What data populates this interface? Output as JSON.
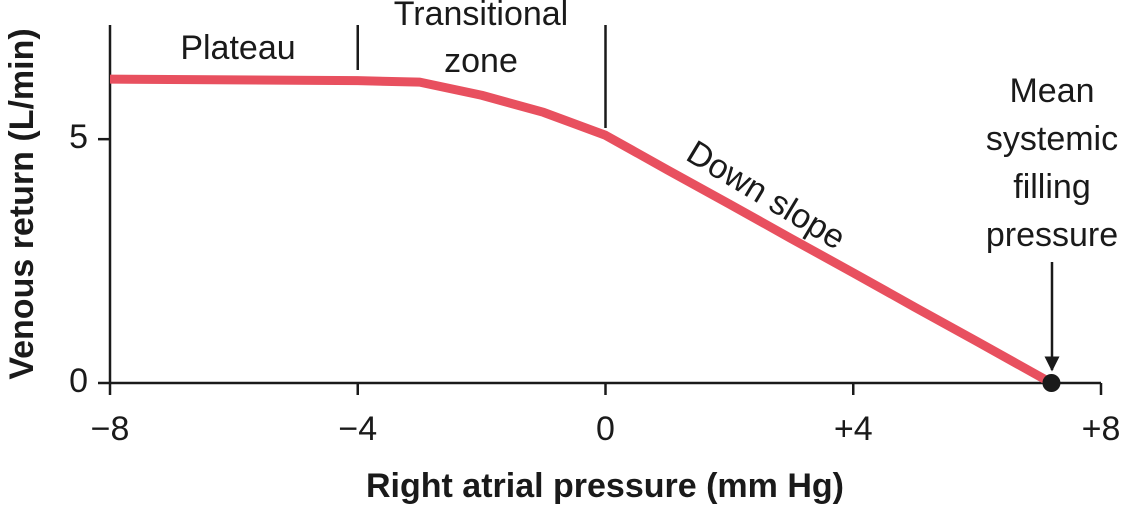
{
  "chart_data": {
    "type": "line",
    "x_label": "Right atrial pressure (mm Hg)",
    "y_label": "Venous return (L/min)",
    "x": [
      -8,
      -4,
      -3,
      -2,
      -1,
      0,
      1,
      2,
      3,
      4,
      5,
      6,
      7.2
    ],
    "series": [
      {
        "color": "#e8505f",
        "values": [
          6.23,
          6.2,
          6.17,
          5.9,
          5.55,
          5.08,
          4.37,
          3.67,
          2.96,
          2.26,
          1.55,
          0.85,
          0
        ]
      }
    ],
    "xlim": [
      -8,
      8
    ],
    "xticks": [
      {
        "value": -8,
        "label": "−8"
      },
      {
        "value": -4,
        "label": "−4"
      },
      0,
      {
        "value": 4,
        "label": "+4"
      },
      {
        "value": 8,
        "label": "+8"
      }
    ],
    "ylim": [
      0,
      7.3
    ],
    "yticks": [
      0,
      5
    ],
    "zone_boundaries": [
      -4,
      0
    ],
    "annotations": [
      {
        "lines": [
          "Plateau"
        ]
      },
      {
        "lines": [
          "Transitional",
          "zone"
        ]
      },
      {
        "lines": [
          "Down slope"
        ]
      },
      {
        "lines": [
          "Mean",
          "systemic",
          "filling",
          "pressure"
        ]
      }
    ]
  }
}
